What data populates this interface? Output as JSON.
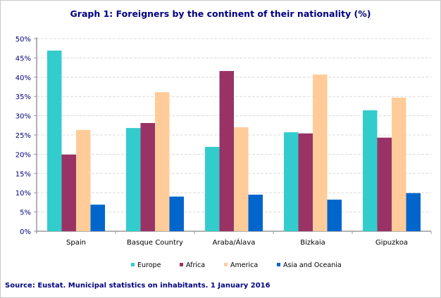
{
  "title": "Graph 1: Foreigners by the continent of their nationality (%)",
  "source": "Source: Eustat. Municipal statistics on inhabitants. 1 January 2016",
  "chart_data": {
    "type": "bar",
    "title": "Graph 1: Foreigners by the continent of their nationality (%)",
    "categories": [
      "Spain",
      "Basque Country",
      "Araba/Álava",
      "Bizkaia",
      "Gipuzkoa"
    ],
    "series": [
      {
        "name": "Europe",
        "color": "#33CCCC",
        "values": [
          46.9,
          26.8,
          21.9,
          25.7,
          31.4
        ]
      },
      {
        "name": "Africa",
        "color": "#993366",
        "values": [
          19.9,
          28.1,
          41.6,
          25.4,
          24.3
        ]
      },
      {
        "name": "America",
        "color": "#FFCC99",
        "values": [
          26.3,
          36.1,
          27.0,
          40.7,
          34.7
        ]
      },
      {
        "name": "Asia and Oceania",
        "color": "#0066CC",
        "values": [
          6.9,
          9.0,
          9.5,
          8.2,
          9.9
        ]
      }
    ],
    "ylim": [
      0,
      50
    ],
    "yticks": [
      "0%",
      "5%",
      "10%",
      "15%",
      "20%",
      "25%",
      "30%",
      "35%",
      "40%",
      "45%",
      "50%"
    ],
    "grid": true,
    "legend": "bottom",
    "xlabel": "",
    "ylabel": ""
  }
}
